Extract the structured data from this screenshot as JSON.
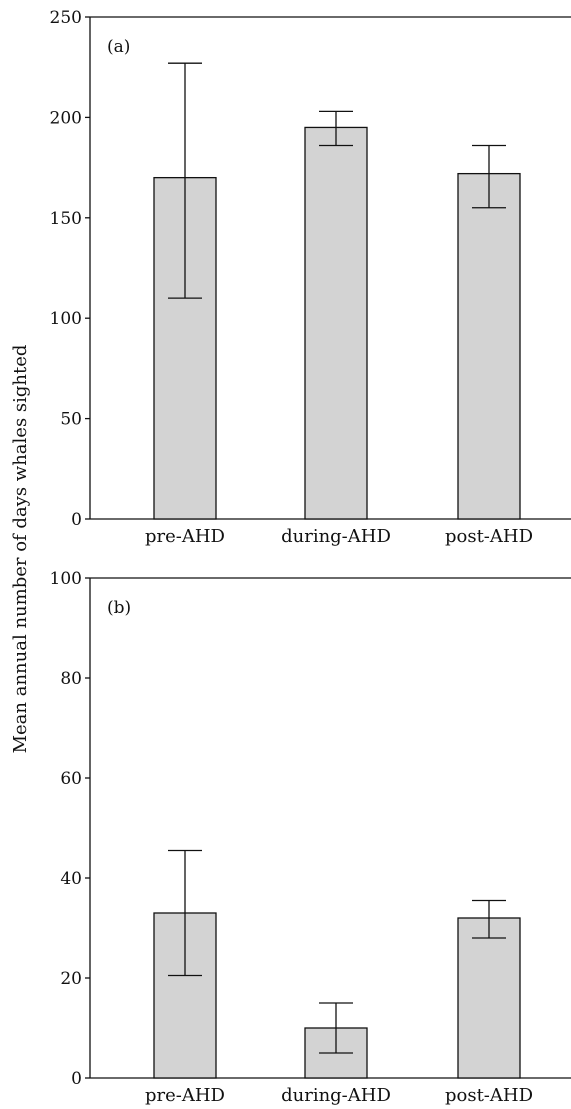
{
  "ylabel": "Mean annual number of days whales sighted",
  "colors": {
    "bar_fill": "#d3d3d3",
    "stroke": "#111111"
  },
  "chart_data": [
    {
      "type": "bar",
      "panel_label": "(a)",
      "categories": [
        "pre-AHD",
        "during-AHD",
        "post-AHD"
      ],
      "values": [
        170,
        195,
        172
      ],
      "error_low": [
        110,
        186,
        155
      ],
      "error_high": [
        227,
        203,
        186
      ],
      "ylim": [
        0,
        250
      ],
      "yticks": [
        0,
        50,
        100,
        150,
        200,
        250
      ],
      "grid": false,
      "xlabel": "",
      "ylabel": "Mean annual number of days whales sighted"
    },
    {
      "type": "bar",
      "panel_label": "(b)",
      "categories": [
        "pre-AHD",
        "during-AHD",
        "post-AHD"
      ],
      "values": [
        33,
        10,
        32
      ],
      "error_low": [
        20.5,
        5,
        28
      ],
      "error_high": [
        45.5,
        15,
        35.5
      ],
      "ylim": [
        0,
        100
      ],
      "yticks": [
        0,
        20,
        40,
        60,
        80,
        100
      ],
      "grid": false,
      "xlabel": "",
      "ylabel": "Mean annual number of days whales sighted"
    }
  ]
}
